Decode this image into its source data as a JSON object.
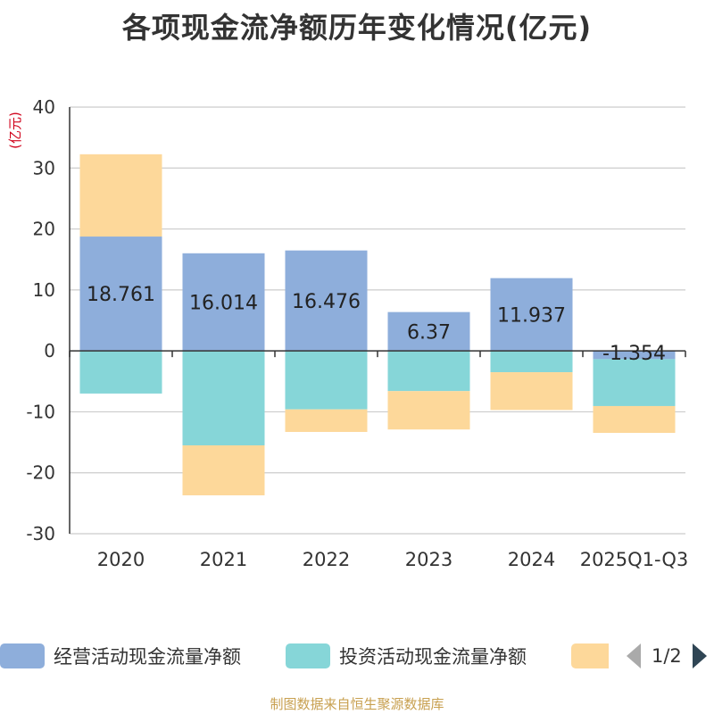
{
  "chart_data": {
    "type": "bar",
    "stacked": true,
    "title": "各项现金流净额历年变化情况(亿元)",
    "ylabel": "(亿元)",
    "xlabel": "",
    "ylim": [
      -30,
      40
    ],
    "yticks": [
      -30,
      -20,
      -10,
      0,
      10,
      20,
      30,
      40
    ],
    "categories": [
      "2020",
      "2021",
      "2022",
      "2023",
      "2024",
      "2025Q1-Q3"
    ],
    "series": [
      {
        "name": "经营活动现金流量净额",
        "color": "#8eaedb",
        "values": [
          18.761,
          16.014,
          16.476,
          6.37,
          11.937,
          -1.354
        ],
        "labels": [
          "18.761",
          "16.014",
          "16.476",
          "6.37",
          "11.937",
          "-1.354"
        ]
      },
      {
        "name": "投资活动现金流量净额",
        "color": "#86d6d8",
        "values": [
          -7.0,
          -15.5,
          -9.6,
          -6.6,
          -3.5,
          -7.7
        ]
      },
      {
        "name": "",
        "color": "#fdd89a",
        "values": [
          13.5,
          -8.2,
          -3.7,
          -6.3,
          -6.2,
          -4.4
        ]
      }
    ]
  },
  "legend": {
    "page_text": "1/2"
  },
  "footer": "制图数据来自恒生聚源数据库"
}
